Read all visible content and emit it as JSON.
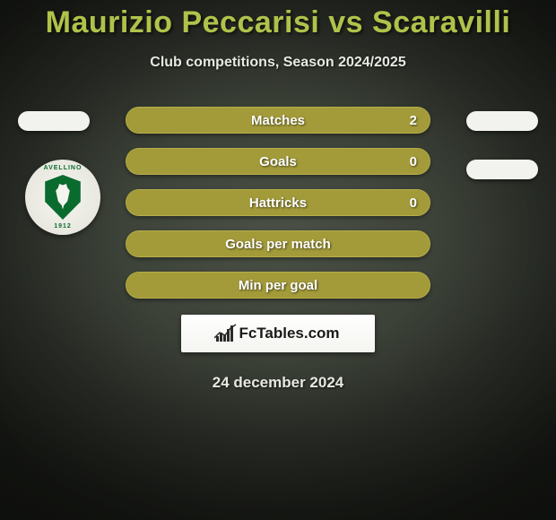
{
  "title": {
    "text": "Maurizio Peccarisi vs Scaravilli",
    "color": "#b0c24a"
  },
  "subtitle": {
    "text": "Club competitions, Season 2024/2025",
    "color": "#e8e8e2"
  },
  "date": {
    "text": "24 december 2024",
    "color": "#e8e8e2"
  },
  "colors": {
    "bar_bg": "#8f8a2e",
    "bar_border": "#b5ae4a",
    "bar_fill": "#a39b3a",
    "text_on_bar": "#ffffff",
    "pill_bg": "#f2f2ee",
    "badge_green": "#0a6b2f"
  },
  "stats": [
    {
      "label": "Matches",
      "right_value": "2",
      "fill_pct": 100
    },
    {
      "label": "Goals",
      "right_value": "0",
      "fill_pct": 100
    },
    {
      "label": "Hattricks",
      "right_value": "0",
      "fill_pct": 100
    },
    {
      "label": "Goals per match",
      "right_value": "",
      "fill_pct": 100
    },
    {
      "label": "Min per goal",
      "right_value": "",
      "fill_pct": 100
    }
  ],
  "watermark": {
    "text": "FcTables.com"
  },
  "badge": {
    "ring_top": "AVELLINO",
    "ring_bottom": "1912"
  }
}
